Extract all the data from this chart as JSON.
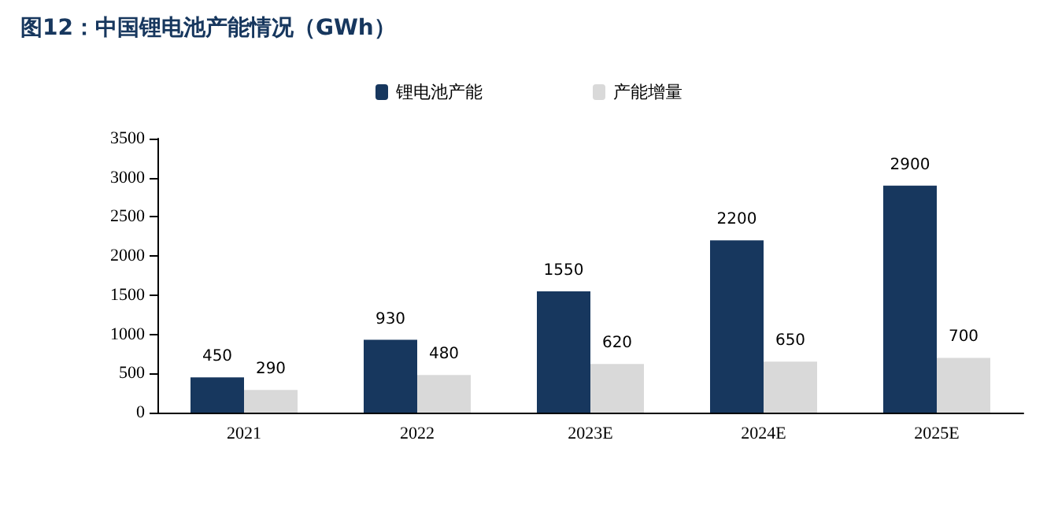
{
  "chart_data": {
    "type": "bar",
    "title": "图12：中国锂电池产能情况（GWh）",
    "categories": [
      "2021",
      "2022",
      "2023E",
      "2024E",
      "2025E"
    ],
    "series": [
      {
        "name": "锂电池产能",
        "color": "#17375e",
        "values": [
          450,
          930,
          1550,
          2200,
          2900
        ]
      },
      {
        "name": "产能增量",
        "color": "#d9d9d9",
        "values": [
          290,
          480,
          620,
          650,
          700
        ]
      }
    ],
    "ylim": [
      0,
      3500
    ],
    "yticks": [
      0,
      500,
      1000,
      1500,
      2000,
      2500,
      3000,
      3500
    ],
    "grid": false,
    "legend": "top",
    "data_labels": true
  }
}
